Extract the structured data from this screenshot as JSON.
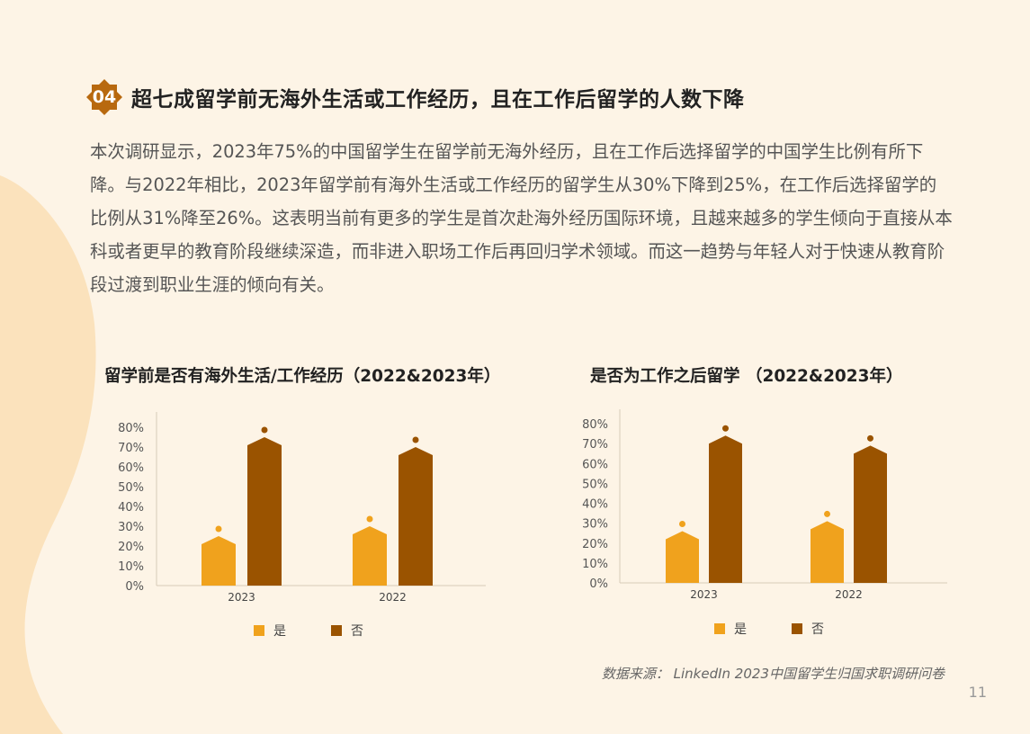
{
  "colors": {
    "yes": "#f0a21d",
    "no": "#9a5300",
    "background": "#fdf4e6",
    "blob": "#fbe2bc",
    "badge": "#b8690f"
  },
  "section": {
    "number": "04",
    "title": "超七成留学前无海外生活或工作经历，且在工作后留学的人数下降"
  },
  "paragraph": "本次调研显示，2023年75%的中国留学生在留学前无海外经历，且在工作后选择留学的中国学生比例有所下降。与2022年相比，2023年留学前有海外生活或工作经历的留学生从30%下降到25%，在工作后选择留学的比例从31%降至26%。这表明当前有更多的学生是首次赴海外经历国际环境，且越来越多的学生倾向于直接从本科或者更早的教育阶段继续深造，而非进入职场工作后再回归学术领域。而这一趋势与年轻人对于快速从教育阶段过渡到职业生涯的倾向有关。",
  "chart_data": [
    {
      "type": "bar",
      "title": "留学前是否有海外生活/工作经历（2022&2023年）",
      "categories": [
        "2023",
        "2022"
      ],
      "series": [
        {
          "name": "是",
          "values": [
            25,
            30
          ]
        },
        {
          "name": "否",
          "values": [
            75,
            70
          ]
        }
      ],
      "ylim": [
        0,
        80
      ],
      "yticks": [
        "0%",
        "10%",
        "20%",
        "30%",
        "40%",
        "50%",
        "60%",
        "70%",
        "80%"
      ],
      "grid": false,
      "legend": "bottom"
    },
    {
      "type": "bar",
      "title": "是否为工作之后留学 （2022&2023年）",
      "categories": [
        "2023",
        "2022"
      ],
      "series": [
        {
          "name": "是",
          "values": [
            26,
            31
          ]
        },
        {
          "name": "否",
          "values": [
            74,
            69
          ]
        }
      ],
      "ylim": [
        0,
        80
      ],
      "yticks": [
        "0%",
        "10%",
        "20%",
        "30%",
        "40%",
        "50%",
        "60%",
        "70%",
        "80%"
      ],
      "grid": false,
      "legend": "bottom"
    }
  ],
  "source": "数据来源： LinkedIn 2023中国留学生归国求职调研问卷",
  "page_number": "11"
}
